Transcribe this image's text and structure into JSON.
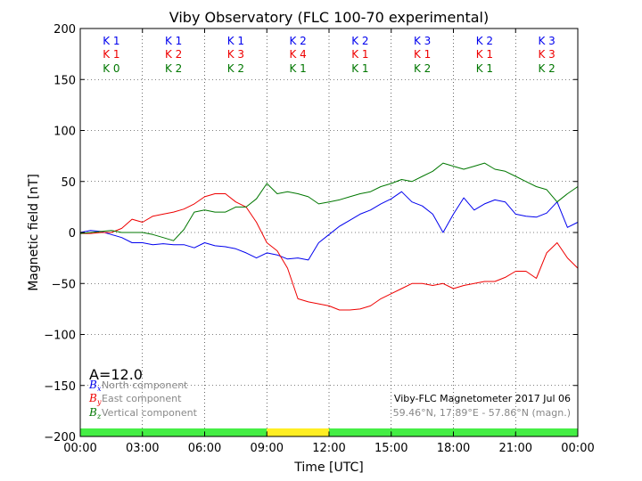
{
  "chart_data": {
    "type": "line",
    "title": "Viby Observatory (FLC 100-70 experimental)",
    "xlabel": "Time [UTC]",
    "ylabel": "Magnetic field [nT]",
    "xlim": [
      0,
      24
    ],
    "ylim": [
      -200,
      200
    ],
    "x_ticks": [
      0,
      3,
      6,
      9,
      12,
      15,
      18,
      21,
      24
    ],
    "x_tick_labels": [
      "00:00",
      "03:00",
      "06:00",
      "09:00",
      "12:00",
      "15:00",
      "18:00",
      "21:00",
      "00:00"
    ],
    "y_ticks": [
      -200,
      -150,
      -100,
      -50,
      0,
      50,
      100,
      150,
      200
    ],
    "y_tick_labels": [
      "−200",
      "−150",
      "−100",
      "−50",
      "0",
      "50",
      "100",
      "150",
      "200"
    ],
    "grid": true,
    "legend_placement": "bottom-left",
    "colors": {
      "north": "#0000ee",
      "east": "#ee0000",
      "vertical": "#007700",
      "quiet": "#44ee44",
      "active": "#ffee22",
      "legend_text": "#888888"
    },
    "k_indices": {
      "north": [
        "K 1",
        "K 1",
        "K 1",
        "K 2",
        "K 2",
        "K 3",
        "K 2",
        "K 3"
      ],
      "east": [
        "K 1",
        "K 2",
        "K 3",
        "K 4",
        "K 1",
        "K 1",
        "K 1",
        "K 3"
      ],
      "vertical": [
        "K 0",
        "K 2",
        "K 2",
        "K 1",
        "K 1",
        "K 2",
        "K 1",
        "K 2"
      ]
    },
    "activity_bar": [
      {
        "from": 0,
        "to": 9,
        "level": "quiet"
      },
      {
        "from": 9,
        "to": 12,
        "level": "active"
      },
      {
        "from": 12,
        "to": 24,
        "level": "quiet"
      }
    ],
    "a_index_text": "A=12.0",
    "legend": [
      {
        "symbol": "B",
        "sub": "x",
        "label": " North component",
        "key": "north"
      },
      {
        "symbol": "B",
        "sub": "y",
        "label": " East component",
        "key": "east"
      },
      {
        "symbol": "B",
        "sub": "z",
        "label": " Vertical component",
        "key": "vertical"
      }
    ],
    "footer_title": "Viby-FLC Magnetometer 2017 Jul 06",
    "footer_coords": "59.46°N, 17.89°E - 57.86°N (magn.)",
    "series": [
      {
        "name": "Bx North component",
        "key": "north",
        "x": [
          0,
          0.5,
          1,
          1.5,
          2,
          2.5,
          3,
          3.5,
          4,
          4.5,
          5,
          5.5,
          6,
          6.5,
          7,
          7.5,
          8,
          8.5,
          9,
          9.5,
          10,
          10.5,
          11,
          11.5,
          12,
          12.5,
          13,
          13.5,
          14,
          14.5,
          15,
          15.5,
          16,
          16.5,
          17,
          17.5,
          18,
          18.5,
          19,
          19.5,
          20,
          20.5,
          21,
          21.5,
          22,
          22.5,
          23,
          23.5,
          24
        ],
        "values": [
          0,
          2,
          1,
          -2,
          -5,
          -10,
          -10,
          -12,
          -11,
          -12,
          -12,
          -15,
          -10,
          -13,
          -14,
          -16,
          -20,
          -25,
          -20,
          -22,
          -26,
          -25,
          -27,
          -10,
          -2,
          6,
          12,
          18,
          22,
          28,
          33,
          40,
          30,
          26,
          18,
          0,
          18,
          34,
          22,
          28,
          32,
          30,
          18,
          16,
          15,
          19,
          30,
          5,
          10
        ]
      },
      {
        "name": "By East component",
        "key": "east",
        "x": [
          0,
          0.5,
          1,
          1.5,
          2,
          2.5,
          3,
          3.5,
          4,
          4.5,
          5,
          5.5,
          6,
          6.5,
          7,
          7.5,
          8,
          8.5,
          9,
          9.5,
          10,
          10.5,
          11,
          11.5,
          12,
          12.5,
          13,
          13.5,
          14,
          14.5,
          15,
          15.5,
          16,
          16.5,
          17,
          17.5,
          18,
          18.5,
          19,
          19.5,
          20,
          20.5,
          21,
          21.5,
          22,
          22.5,
          23,
          23.5,
          24
        ],
        "values": [
          -1,
          -1,
          0,
          0,
          4,
          13,
          10,
          16,
          18,
          20,
          23,
          28,
          35,
          38,
          38,
          30,
          25,
          10,
          -10,
          -18,
          -35,
          -65,
          -68,
          -70,
          -72,
          -76,
          -76,
          -75,
          -72,
          -65,
          -60,
          -55,
          -50,
          -50,
          -52,
          -50,
          -55,
          -52,
          -50,
          -48,
          -48,
          -44,
          -38,
          -38,
          -45,
          -20,
          -10,
          -25,
          -35
        ]
      },
      {
        "name": "Bz Vertical component",
        "key": "vertical",
        "x": [
          0,
          0.5,
          1,
          1.5,
          2,
          2.5,
          3,
          3.5,
          4,
          4.5,
          5,
          5.5,
          6,
          6.5,
          7,
          7.5,
          8,
          8.5,
          9,
          9.5,
          10,
          10.5,
          11,
          11.5,
          12,
          12.5,
          13,
          13.5,
          14,
          14.5,
          15,
          15.5,
          16,
          16.5,
          17,
          17.5,
          18,
          18.5,
          19,
          19.5,
          20,
          20.5,
          21,
          21.5,
          22,
          22.5,
          23,
          23.5,
          24
        ],
        "values": [
          -1,
          0,
          1,
          2,
          0,
          0,
          0,
          -2,
          -5,
          -8,
          3,
          20,
          22,
          20,
          20,
          25,
          25,
          33,
          48,
          38,
          40,
          38,
          35,
          28,
          30,
          32,
          35,
          38,
          40,
          45,
          48,
          52,
          50,
          55,
          60,
          68,
          65,
          62,
          65,
          68,
          62,
          60,
          55,
          50,
          45,
          42,
          30,
          38,
          45
        ]
      }
    ]
  }
}
